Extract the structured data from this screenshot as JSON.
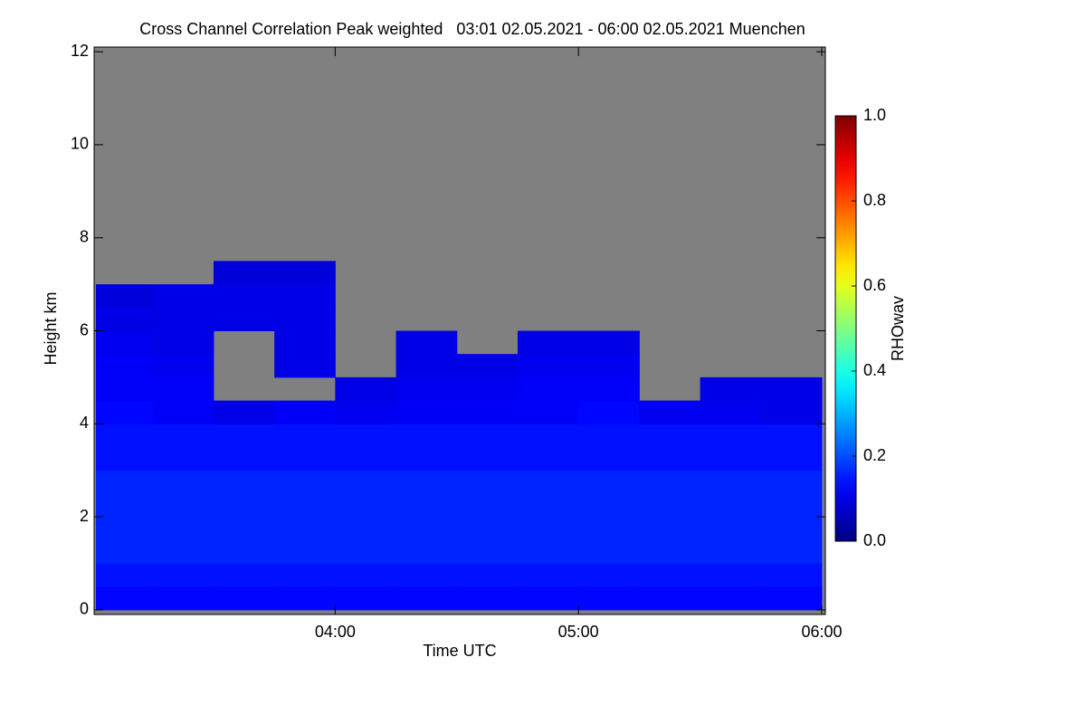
{
  "chart_data": {
    "type": "heatmap",
    "title": "Cross Channel Correlation Peak weighted   03:01 02.05.2021 - 06:00 02.05.2021 Muenchen",
    "xlabel": "Time UTC",
    "ylabel": "Height km",
    "colorbar_label": "RHOwav",
    "colormap": "jet",
    "nodata_color": "#808080",
    "xlim": [
      "03:01",
      "06:00"
    ],
    "xticks": [
      "04:00",
      "05:00",
      "06:00"
    ],
    "ylim": [
      -0.1,
      12.1
    ],
    "yticks": [
      0,
      2,
      4,
      6,
      8,
      10,
      12
    ],
    "clim": [
      0,
      1
    ],
    "cticks": [
      {
        "value": 0,
        "label": "0.0"
      },
      {
        "value": 0.2,
        "label": "0.2"
      },
      {
        "value": 0.4,
        "label": "0.4"
      },
      {
        "value": 0.6,
        "label": "0.6"
      },
      {
        "value": 0.8,
        "label": "0.8"
      },
      {
        "value": 1,
        "label": "1.0"
      }
    ],
    "xbins": [
      "03:01",
      "03:15",
      "03:30",
      "03:45",
      "04:00",
      "04:15",
      "04:30",
      "04:45",
      "05:00",
      "05:15",
      "05:30",
      "05:45",
      "06:00"
    ],
    "ybins": [
      0,
      0.5,
      1,
      1.5,
      2,
      2.5,
      3,
      3.5,
      4,
      4.5,
      5,
      5.5,
      6,
      6.5,
      7,
      7.5,
      8,
      8.5,
      9,
      9.5,
      10,
      10.5,
      11,
      11.5,
      12
    ],
    "z": [
      [
        0.13,
        0.13,
        0.13,
        0.13,
        0.13,
        0.13,
        0.13,
        0.13,
        0.13,
        0.13,
        0.13,
        0.13
      ],
      [
        0.14,
        0.14,
        0.14,
        0.14,
        0.14,
        0.14,
        0.14,
        0.14,
        0.14,
        0.14,
        0.14,
        0.14
      ],
      [
        0.16,
        0.16,
        0.16,
        0.16,
        0.16,
        0.16,
        0.16,
        0.16,
        0.16,
        0.16,
        0.16,
        0.16
      ],
      [
        0.16,
        0.16,
        0.16,
        0.16,
        0.16,
        0.16,
        0.16,
        0.16,
        0.16,
        0.16,
        0.16,
        0.16
      ],
      [
        0.16,
        0.16,
        0.16,
        0.16,
        0.16,
        0.16,
        0.16,
        0.16,
        0.16,
        0.16,
        0.16,
        0.16
      ],
      [
        0.16,
        0.16,
        0.16,
        0.16,
        0.16,
        0.16,
        0.16,
        0.16,
        0.16,
        0.16,
        0.16,
        0.16
      ],
      [
        0.14,
        0.14,
        0.14,
        0.14,
        0.14,
        0.14,
        0.14,
        0.14,
        0.14,
        0.14,
        0.14,
        0.14
      ],
      [
        0.14,
        0.14,
        0.14,
        0.14,
        0.14,
        0.14,
        0.14,
        0.14,
        0.14,
        0.14,
        0.14,
        0.14
      ],
      [
        0.13,
        0.12,
        0.1,
        0.12,
        0.11,
        0.12,
        0.12,
        0.12,
        0.13,
        0.11,
        0.11,
        0.1
      ],
      [
        0.12,
        0.12,
        null,
        null,
        0.1,
        0.11,
        0.11,
        0.12,
        0.12,
        null,
        0.1,
        0.1
      ],
      [
        0.12,
        0.11,
        null,
        0.1,
        null,
        0.1,
        0.1,
        0.11,
        0.11,
        null,
        null,
        null
      ],
      [
        0.11,
        0.1,
        null,
        0.1,
        null,
        0.1,
        null,
        0.1,
        0.1,
        null,
        null,
        null
      ],
      [
        0.1,
        0.1,
        0.1,
        0.1,
        null,
        null,
        null,
        null,
        null,
        null,
        null,
        null
      ],
      [
        0.09,
        0.1,
        0.1,
        0.1,
        null,
        null,
        null,
        null,
        null,
        null,
        null,
        null
      ],
      [
        null,
        null,
        0.09,
        0.09,
        null,
        null,
        null,
        null,
        null,
        null,
        null,
        null
      ],
      [
        null,
        null,
        null,
        null,
        null,
        null,
        null,
        null,
        null,
        null,
        null,
        null
      ],
      [
        null,
        null,
        null,
        null,
        null,
        null,
        null,
        null,
        null,
        null,
        null,
        null
      ],
      [
        null,
        null,
        null,
        null,
        null,
        null,
        null,
        null,
        null,
        null,
        null,
        null
      ],
      [
        null,
        null,
        null,
        null,
        null,
        null,
        null,
        null,
        null,
        null,
        null,
        null
      ],
      [
        null,
        null,
        null,
        null,
        null,
        null,
        null,
        null,
        null,
        null,
        null,
        null
      ],
      [
        null,
        null,
        null,
        null,
        null,
        null,
        null,
        null,
        null,
        null,
        null,
        null
      ],
      [
        null,
        null,
        null,
        null,
        null,
        null,
        null,
        null,
        null,
        null,
        null,
        null
      ],
      [
        null,
        null,
        null,
        null,
        null,
        null,
        null,
        null,
        null,
        null,
        null,
        null
      ],
      [
        null,
        null,
        null,
        null,
        null,
        null,
        null,
        null,
        null,
        null,
        null,
        null
      ]
    ]
  }
}
